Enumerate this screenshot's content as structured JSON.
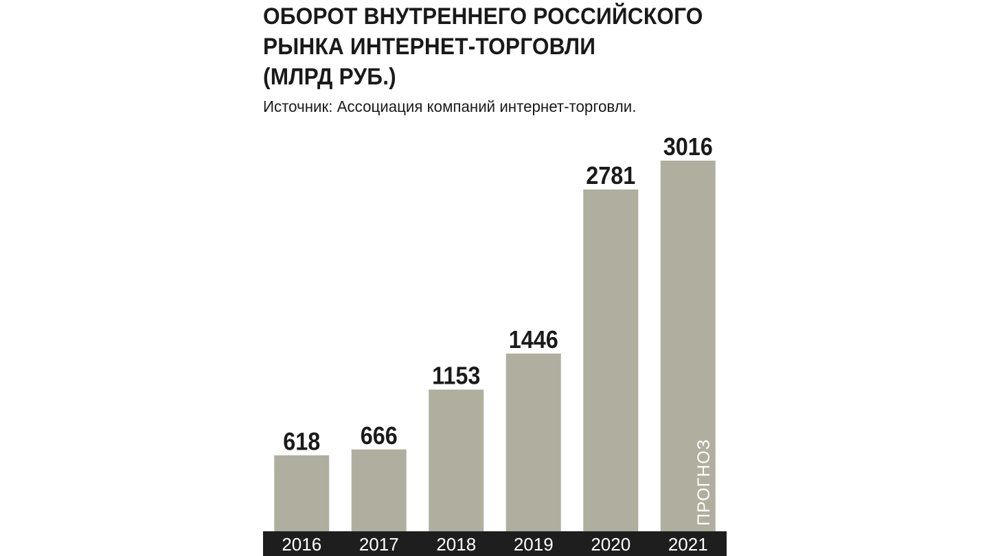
{
  "chart_data": {
    "type": "bar",
    "title_lines": [
      "ОБОРОТ ВНУТРЕННЕГО РОССИЙСКОГО",
      "РЫНКА ИНТЕРНЕТ-ТОРГОВЛИ",
      "(МЛРД РУБ.)"
    ],
    "subtitle": "Источник: Ассоциация компаний интернет-торговли.",
    "categories": [
      "2016",
      "2017",
      "2018",
      "2019",
      "2020",
      "2021"
    ],
    "values": [
      618,
      666,
      1153,
      1446,
      2781,
      3016
    ],
    "value_labels": [
      "618",
      "666",
      "1153",
      "1446",
      "2781",
      "3016"
    ],
    "annotations": [
      {
        "category": "2021",
        "text": "ПРОГНОЗ"
      }
    ],
    "xlabel": "",
    "ylabel": "",
    "ylim": [
      0,
      3016
    ],
    "grid": false,
    "legend": "none",
    "colors": {
      "bar": "#b0ae9f",
      "axis_band": "#1e1e1e",
      "text": "#1a1a1a",
      "tick_text": "#ffffff"
    }
  }
}
